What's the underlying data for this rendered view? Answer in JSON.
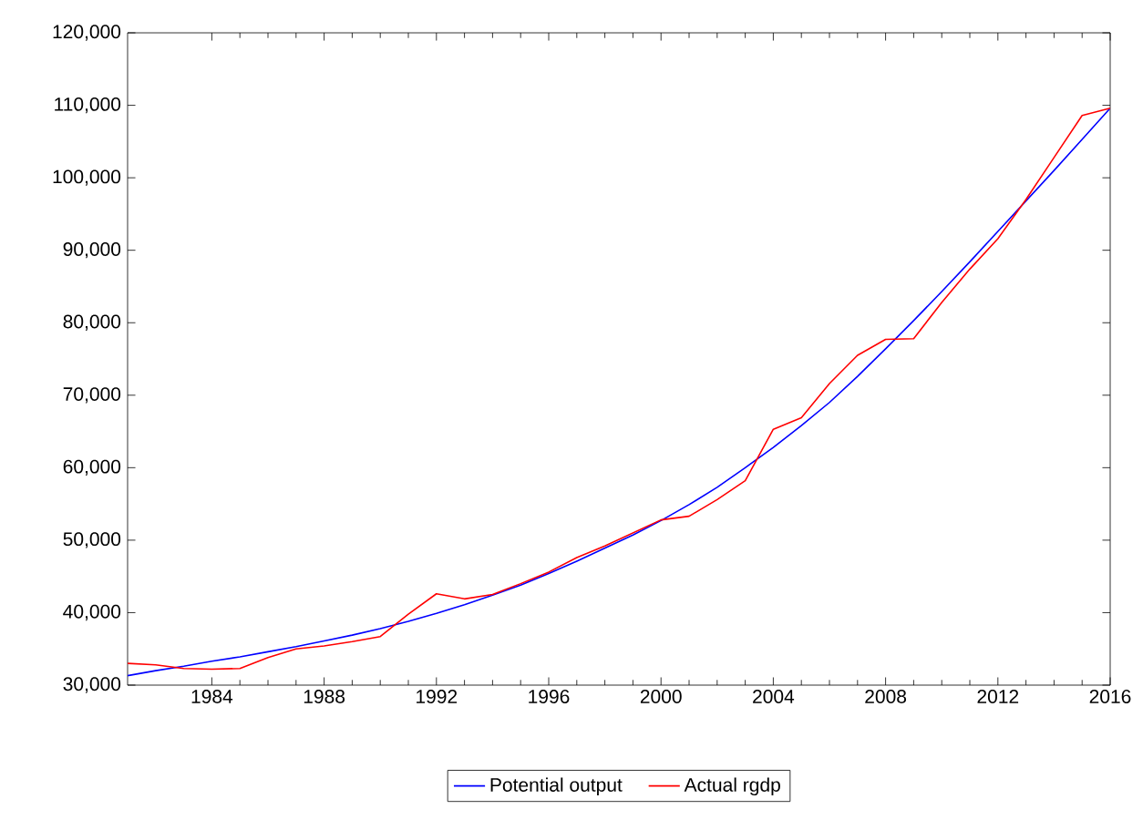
{
  "chart_data": {
    "type": "line",
    "x": [
      1981,
      1982,
      1983,
      1984,
      1985,
      1986,
      1987,
      1988,
      1989,
      1990,
      1991,
      1992,
      1993,
      1994,
      1995,
      1996,
      1997,
      1998,
      1999,
      2000,
      2001,
      2002,
      2003,
      2004,
      2005,
      2006,
      2007,
      2008,
      2009,
      2010,
      2011,
      2012,
      2013,
      2014,
      2015,
      2016
    ],
    "series": [
      {
        "name": "Potential output",
        "color": "#0000ff",
        "values": [
          31300,
          32000,
          32600,
          33300,
          33900,
          34600,
          35300,
          36100,
          36900,
          37800,
          38800,
          39900,
          41100,
          42400,
          43800,
          45400,
          47100,
          48900,
          50700,
          52700,
          54900,
          57300,
          60000,
          62800,
          65800,
          69000,
          72600,
          76400,
          80300,
          84300,
          88400,
          92600,
          96800,
          101000,
          105300,
          109600
        ]
      },
      {
        "name": "Actual rgdp",
        "color": "#ff0000",
        "values": [
          33000,
          32800,
          32300,
          32200,
          32300,
          33800,
          35000,
          35400,
          36000,
          36700,
          39800,
          42600,
          41900,
          42500,
          44000,
          45600,
          47600,
          49200,
          51000,
          52800,
          53300,
          55600,
          58200,
          65300,
          66900,
          71600,
          75500,
          77700,
          77800,
          82800,
          87400,
          91600,
          97000,
          102800,
          108600,
          109600
        ]
      }
    ],
    "xlim": [
      1981,
      2016
    ],
    "ylim": [
      30000,
      120000
    ],
    "xticks": [
      1984,
      1988,
      1992,
      1996,
      2000,
      2004,
      2008,
      2012,
      2016
    ],
    "yticks": [
      {
        "value": 30000,
        "label": "30,000"
      },
      {
        "value": 40000,
        "label": "40,000"
      },
      {
        "value": 50000,
        "label": "50,000"
      },
      {
        "value": 60000,
        "label": "60,000"
      },
      {
        "value": 70000,
        "label": "70,000"
      },
      {
        "value": 80000,
        "label": "80,000"
      },
      {
        "value": 90000,
        "label": "90,000"
      },
      {
        "value": 100000,
        "label": "100,000"
      },
      {
        "value": 110000,
        "label": "110,000"
      },
      {
        "value": 120000,
        "label": "120,000"
      }
    ],
    "legend": "bottom"
  }
}
